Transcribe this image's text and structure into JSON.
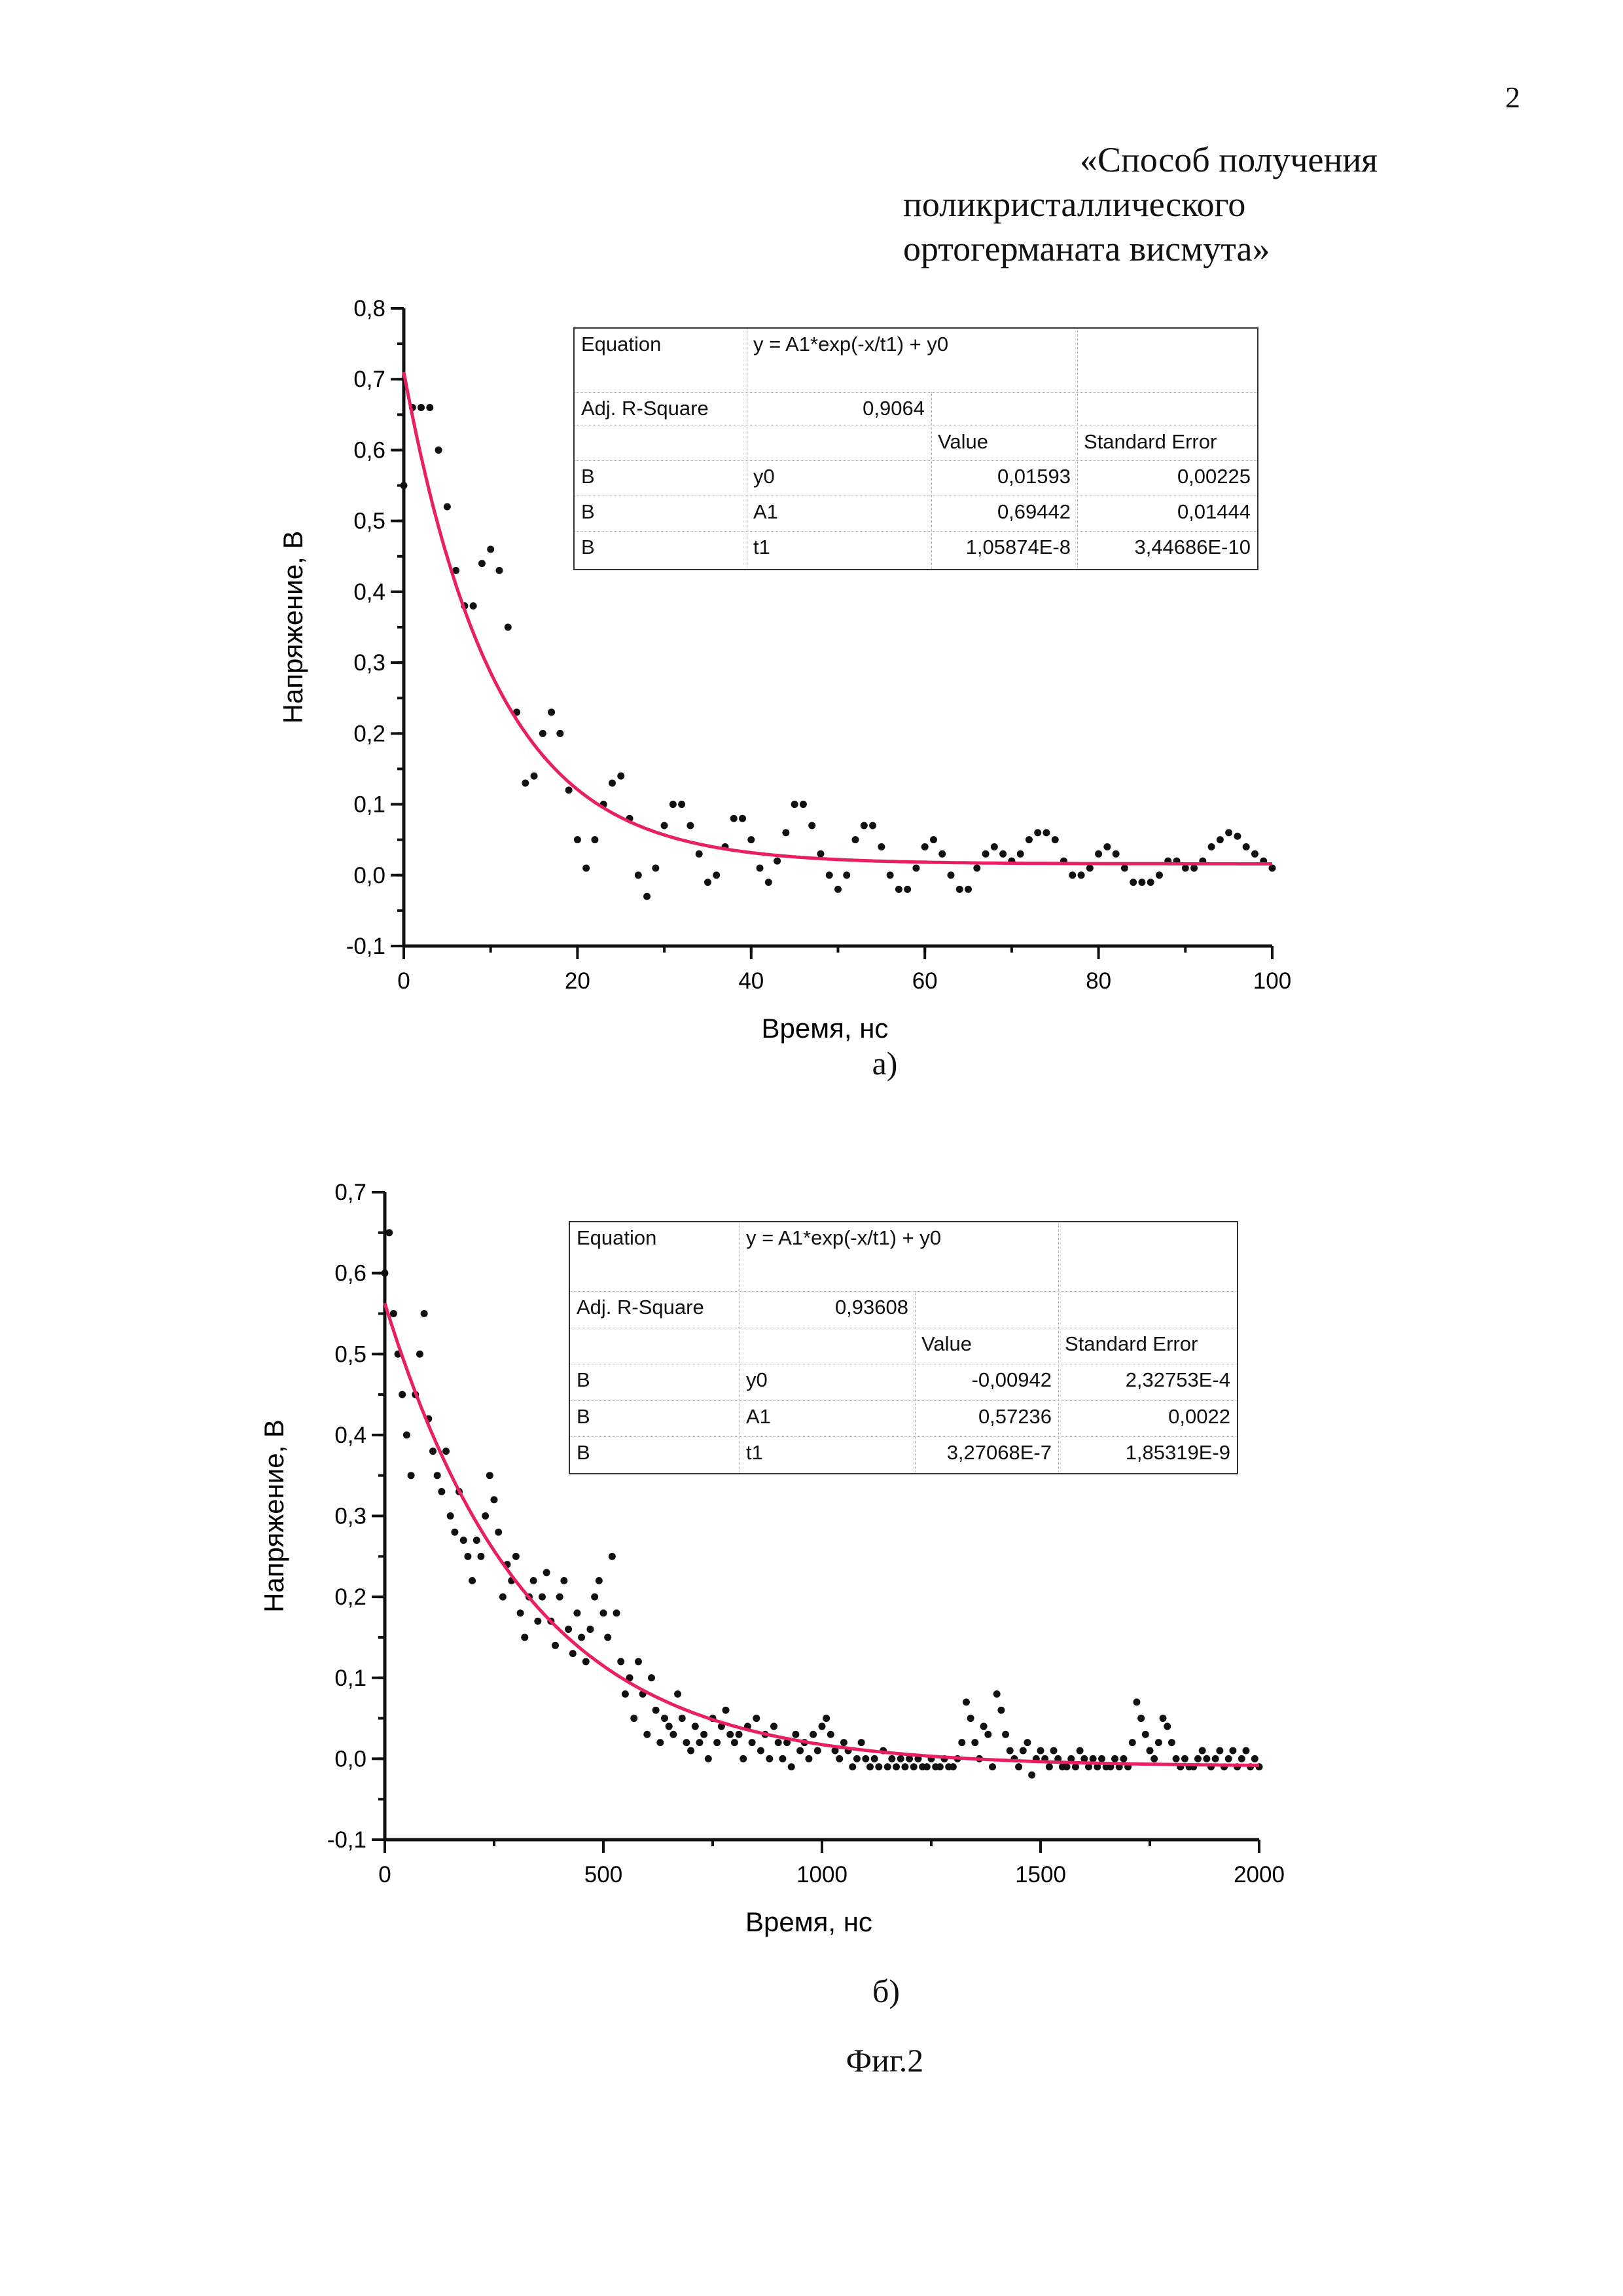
{
  "page_number": "2",
  "title_lines": [
    "«Способ получения",
    "поликристаллического",
    "ортогерманата висмута»"
  ],
  "captions": {
    "a": "а)",
    "b": "б)",
    "figure": "Фиг.2"
  },
  "colors": {
    "points": "#111111",
    "fit": "#e8205f",
    "axis": "#111111"
  },
  "chart_data": [
    {
      "type": "scatter",
      "xlabel": "Время, нс",
      "ylabel": "Напряжение, В",
      "xlim": [
        0,
        100
      ],
      "ylim": [
        -0.1,
        0.8
      ],
      "xticks": [
        "0",
        "20",
        "40",
        "60",
        "80",
        "100"
      ],
      "xtick_values": [
        0,
        20,
        40,
        60,
        80,
        100
      ],
      "yticks": [
        "-0,1",
        "0,0",
        "0,1",
        "0,2",
        "0,3",
        "0,4",
        "0,5",
        "0,6",
        "0,7",
        "0,8"
      ],
      "ytick_values": [
        -0.1,
        0,
        0.1,
        0.2,
        0.3,
        0.4,
        0.5,
        0.6,
        0.7,
        0.8
      ],
      "x_minor_step": 10,
      "y_minor_step": 0.05,
      "grid": false,
      "x_start": 0,
      "x_step": 1,
      "y": [
        0.55,
        0.66,
        0.66,
        0.66,
        0.6,
        0.52,
        0.43,
        0.38,
        0.38,
        0.44,
        0.46,
        0.43,
        0.35,
        0.23,
        0.13,
        0.14,
        0.2,
        0.23,
        0.2,
        0.12,
        0.05,
        0.01,
        0.05,
        0.1,
        0.13,
        0.14,
        0.08,
        0.0,
        -0.03,
        0.01,
        0.07,
        0.1,
        0.1,
        0.07,
        0.03,
        -0.01,
        0.0,
        0.04,
        0.08,
        0.08,
        0.05,
        0.01,
        -0.01,
        0.02,
        0.06,
        0.1,
        0.1,
        0.07,
        0.03,
        0.0,
        -0.02,
        0.0,
        0.05,
        0.07,
        0.07,
        0.04,
        0.0,
        -0.02,
        -0.02,
        0.01,
        0.04,
        0.05,
        0.03,
        0.0,
        -0.02,
        -0.02,
        0.01,
        0.03,
        0.04,
        0.03,
        0.02,
        0.03,
        0.05,
        0.06,
        0.06,
        0.05,
        0.02,
        0.0,
        0.0,
        0.01,
        0.03,
        0.04,
        0.03,
        0.01,
        -0.01,
        -0.01,
        -0.01,
        0.0,
        0.02,
        0.02,
        0.01,
        0.01,
        0.02,
        0.04,
        0.05,
        0.06,
        0.055,
        0.04,
        0.03,
        0.02,
        0.01
      ],
      "fit": {
        "model": "exp_decay",
        "y0": 0.01593,
        "A1": 0.69442,
        "t1": 10.5874
      },
      "fit_table": {
        "equation_label": "Equation",
        "equation": "y = A1*exp(-x/t1) + y0",
        "r2_label": "Adj. R-Square",
        "r2": "0,9064",
        "value_header": "Value",
        "error_header": "Standard Error",
        "rows": [
          {
            "name": "B",
            "param": "y0",
            "value": "0,01593",
            "error": "0,00225"
          },
          {
            "name": "B",
            "param": "A1",
            "value": "0,69442",
            "error": "0,01444"
          },
          {
            "name": "B",
            "param": "t1",
            "value": "1,05874E-8",
            "error": "3,44686E-10"
          }
        ]
      }
    },
    {
      "type": "scatter",
      "xlabel": "Время, нс",
      "ylabel": "Напряжение, В",
      "xlim": [
        0,
        2000
      ],
      "ylim": [
        -0.1,
        0.7
      ],
      "xticks": [
        "0",
        "500",
        "1000",
        "1500",
        "2000"
      ],
      "xtick_values": [
        0,
        500,
        1000,
        1500,
        2000
      ],
      "yticks": [
        "-0,1",
        "0,0",
        "0,1",
        "0,2",
        "0,3",
        "0,4",
        "0,5",
        "0,6",
        "0,7"
      ],
      "ytick_values": [
        -0.1,
        0,
        0.1,
        0.2,
        0.3,
        0.4,
        0.5,
        0.6,
        0.7
      ],
      "x_minor_step": 250,
      "y_minor_step": 0.05,
      "grid": false,
      "x_start": 0,
      "x_step": 10,
      "y": [
        0.6,
        0.65,
        0.55,
        0.5,
        0.45,
        0.4,
        0.35,
        0.45,
        0.5,
        0.55,
        0.42,
        0.38,
        0.35,
        0.33,
        0.38,
        0.3,
        0.28,
        0.33,
        0.27,
        0.25,
        0.22,
        0.27,
        0.25,
        0.3,
        0.35,
        0.32,
        0.28,
        0.2,
        0.24,
        0.22,
        0.25,
        0.18,
        0.15,
        0.2,
        0.22,
        0.17,
        0.2,
        0.23,
        0.17,
        0.14,
        0.2,
        0.22,
        0.16,
        0.13,
        0.18,
        0.15,
        0.12,
        0.16,
        0.2,
        0.22,
        0.18,
        0.15,
        0.25,
        0.18,
        0.12,
        0.08,
        0.1,
        0.05,
        0.12,
        0.08,
        0.03,
        0.1,
        0.06,
        0.02,
        0.05,
        0.04,
        0.03,
        0.08,
        0.05,
        0.02,
        0.01,
        0.04,
        0.02,
        0.03,
        0.0,
        0.05,
        0.02,
        0.04,
        0.06,
        0.03,
        0.02,
        0.03,
        0.0,
        0.04,
        0.02,
        0.05,
        0.01,
        0.03,
        0.0,
        0.04,
        0.02,
        0.0,
        0.02,
        -0.01,
        0.03,
        0.01,
        0.02,
        0.0,
        0.03,
        0.01,
        0.04,
        0.05,
        0.03,
        0.01,
        0.0,
        0.02,
        0.01,
        -0.01,
        0.0,
        0.02,
        0.0,
        -0.01,
        0.0,
        -0.01,
        0.01,
        -0.01,
        0.0,
        -0.01,
        0.0,
        -0.01,
        0.0,
        -0.01,
        0.0,
        -0.01,
        -0.01,
        0.0,
        -0.01,
        -0.01,
        0.0,
        -0.01,
        -0.01,
        0.0,
        0.02,
        0.07,
        0.05,
        0.02,
        0.0,
        0.04,
        0.03,
        -0.01,
        0.08,
        0.06,
        0.03,
        0.01,
        0.0,
        -0.01,
        0.01,
        0.02,
        -0.02,
        0.0,
        0.01,
        0.0,
        -0.01,
        0.01,
        0.0,
        -0.01,
        -0.01,
        0.0,
        -0.01,
        0.01,
        0.0,
        -0.01,
        0.0,
        -0.01,
        0.0,
        -0.01,
        -0.01,
        0.0,
        -0.01,
        0.0,
        -0.01,
        0.02,
        0.07,
        0.05,
        0.03,
        0.01,
        0.0,
        0.02,
        0.05,
        0.04,
        0.02,
        0.0,
        -0.01,
        0.0,
        -0.01,
        -0.01,
        0.0,
        0.01,
        0.0,
        -0.01,
        0.0,
        0.01,
        -0.01,
        0.0,
        0.01,
        -0.01,
        0.0,
        0.01,
        -0.01,
        0.0,
        -0.01
      ],
      "fit": {
        "model": "exp_decay",
        "y0": -0.00942,
        "A1": 0.57236,
        "t1": 327.068
      },
      "fit_table": {
        "equation_label": "Equation",
        "equation": "y = A1*exp(-x/t1) + y0",
        "r2_label": "Adj. R-Square",
        "r2": "0,93608",
        "value_header": "Value",
        "error_header": "Standard Error",
        "rows": [
          {
            "name": "B",
            "param": "y0",
            "value": "-0,00942",
            "error": "2,32753E-4"
          },
          {
            "name": "B",
            "param": "A1",
            "value": "0,57236",
            "error": "0,0022"
          },
          {
            "name": "B",
            "param": "t1",
            "value": "3,27068E-7",
            "error": "1,85319E-9"
          }
        ]
      }
    }
  ]
}
